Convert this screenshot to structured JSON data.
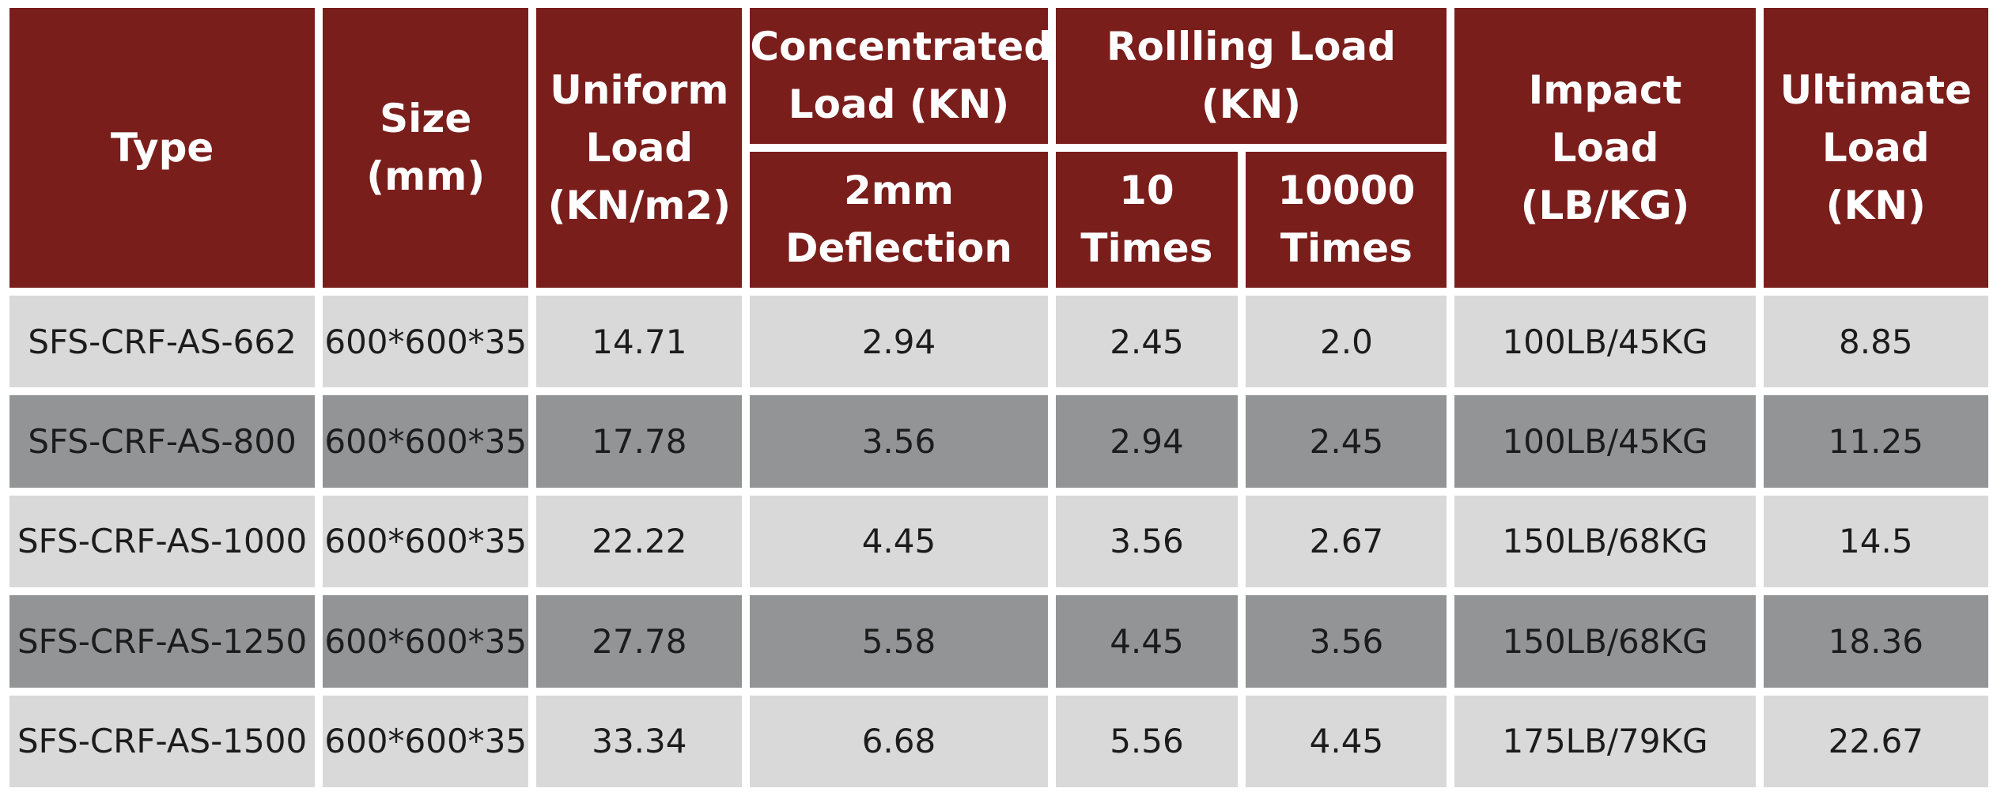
{
  "table": {
    "headers": {
      "type": "Type",
      "size": [
        "Size",
        "(mm)"
      ],
      "uniform": [
        "Uniform",
        "Load",
        "(KN/m2)"
      ],
      "concentrated": [
        "Concentrated",
        "Load (KN)"
      ],
      "concentrated_sub": [
        "2mm",
        "Deflection"
      ],
      "rolling": [
        "Rollling Load",
        "(KN)"
      ],
      "rolling_sub_10": [
        "10",
        "Times"
      ],
      "rolling_sub_10000": [
        "10000",
        "Times"
      ],
      "impact": [
        "Impact",
        "Load",
        "(LB/KG)"
      ],
      "ultimate": [
        "Ultimate",
        "Load",
        "(KN)"
      ]
    },
    "rows": [
      [
        "SFS-CRF-AS-662",
        "600*600*35",
        "14.71",
        "2.94",
        "2.45",
        "2.0",
        "100LB/45KG",
        "8.85"
      ],
      [
        "SFS-CRF-AS-800",
        "600*600*35",
        "17.78",
        "3.56",
        "2.94",
        "2.45",
        "100LB/45KG",
        "11.25"
      ],
      [
        "SFS-CRF-AS-1000",
        "600*600*35",
        "22.22",
        "4.45",
        "3.56",
        "2.67",
        "150LB/68KG",
        "14.5"
      ],
      [
        "SFS-CRF-AS-1250",
        "600*600*35",
        "27.78",
        "5.58",
        "4.45",
        "3.56",
        "150LB/68KG",
        "18.36"
      ],
      [
        "SFS-CRF-AS-1500",
        "600*600*35",
        "33.34",
        "6.68",
        "5.56",
        "4.45",
        "175LB/79KG",
        "22.67"
      ]
    ],
    "colors": {
      "header_bg": "#7a1e1c",
      "header_text": "#ffffff",
      "row_light": "#d9d9d9",
      "row_dark": "#939495"
    }
  }
}
